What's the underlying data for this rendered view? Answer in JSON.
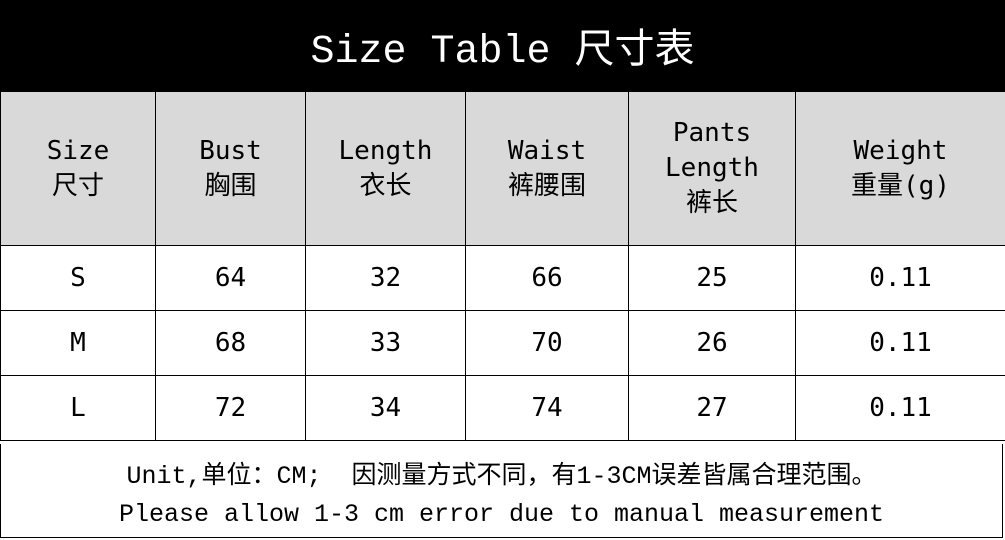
{
  "title": "Size Table 尺寸表",
  "columns": [
    {
      "en": "Size",
      "cn": "尺寸"
    },
    {
      "en": "Bust",
      "cn": "胸围"
    },
    {
      "en": "Length",
      "cn": "衣长"
    },
    {
      "en": "Waist",
      "cn": "裤腰围"
    },
    {
      "en": "Pants Length",
      "cn": "裤长"
    },
    {
      "en": "Weight",
      "cn": "重量(g)"
    }
  ],
  "rows": [
    [
      "S",
      "64",
      "32",
      "66",
      "25",
      "0.11"
    ],
    [
      "M",
      "68",
      "33",
      "70",
      "26",
      "0.11"
    ],
    [
      "L",
      "72",
      "34",
      "74",
      "27",
      "0.11"
    ]
  ],
  "footer": {
    "line1": "Unit,单位：CM;  因测量方式不同，有1-3CM误差皆属合理范围。",
    "line2": "Please allow 1-3 cm error due to manual measurement"
  },
  "colors": {
    "header_bg": "#000000",
    "header_row_bg": "#d9d9d9"
  }
}
